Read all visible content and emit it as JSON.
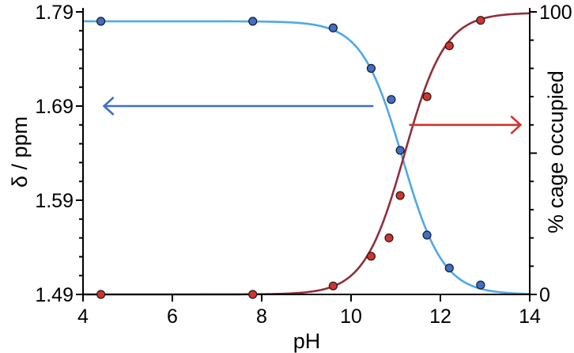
{
  "chart_data": {
    "type": "scatter",
    "xlabel": "pH",
    "ylabel_left": "δ / ppm",
    "ylabel_right": "% cage occupied",
    "xlim": [
      4,
      14
    ],
    "ylim_left": [
      1.49,
      1.79
    ],
    "ylim_right": [
      0,
      100
    ],
    "x_ticks": [
      4,
      6,
      8,
      10,
      12,
      14
    ],
    "y_left_ticks": [
      1.49,
      1.59,
      1.69,
      1.79
    ],
    "y_left_tick_labels": [
      "1.49",
      "1.59",
      "1.69",
      "1.79"
    ],
    "y_right_ticks": [
      0,
      50,
      100
    ],
    "y_right_minor_ticks": [
      10,
      20,
      30,
      40,
      60,
      70,
      80,
      90
    ],
    "y_left_minor_step": 0.02,
    "grid": false,
    "series": [
      {
        "axis": "left",
        "color": "#3e6fc9",
        "curve_color": "#4fa8e8",
        "arrow": "left",
        "points": [
          {
            "x": 4.4,
            "y": 1.78
          },
          {
            "x": 7.8,
            "y": 1.78
          },
          {
            "x": 9.6,
            "y": 1.773
          },
          {
            "x": 10.45,
            "y": 1.73
          },
          {
            "x": 10.9,
            "y": 1.697
          },
          {
            "x": 11.1,
            "y": 1.643
          },
          {
            "x": 11.7,
            "y": 1.553
          },
          {
            "x": 12.2,
            "y": 1.518
          },
          {
            "x": 12.9,
            "y": 1.5
          }
        ],
        "fit": {
          "pKa": 11.15,
          "slope": 2.2,
          "top": 1.78,
          "bottom": 1.49
        }
      },
      {
        "axis": "right",
        "color": "#d0342c",
        "curve_color": "#8f2f3c",
        "arrow": "right",
        "points": [
          {
            "x": 4.4,
            "y": 0
          },
          {
            "x": 7.8,
            "y": 0
          },
          {
            "x": 9.6,
            "y": 3
          },
          {
            "x": 10.45,
            "y": 13.5
          },
          {
            "x": 10.85,
            "y": 20
          },
          {
            "x": 11.1,
            "y": 35
          },
          {
            "x": 11.7,
            "y": 70
          },
          {
            "x": 12.2,
            "y": 88
          },
          {
            "x": 12.9,
            "y": 97
          }
        ],
        "fit": {
          "pKa": 11.2,
          "slope": 2.2,
          "top": 99.7,
          "bottom": 0
        }
      }
    ]
  }
}
